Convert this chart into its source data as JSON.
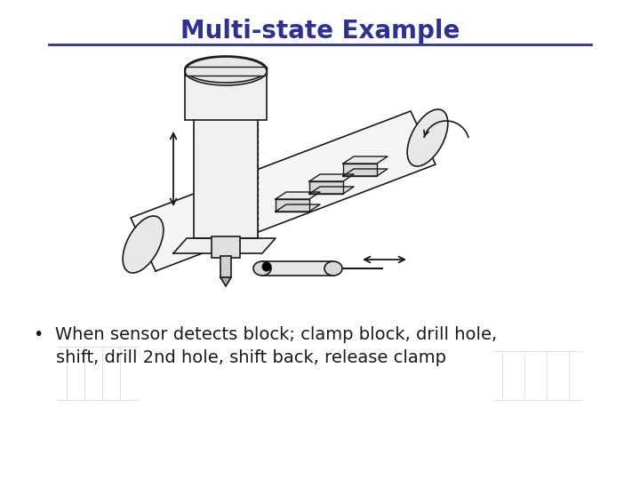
{
  "title": "Multi-state Example",
  "title_color": "#2E3192",
  "title_fontsize": 20,
  "underline_color": "#2E3192",
  "bullet_line1": "•  When sensor detects block; clamp block, drill hole,",
  "bullet_line2": "    shift, drill 2nd hole, shift back, release clamp",
  "bullet_fontsize": 14,
  "bullet_color": "#1a1a1a",
  "bg_color": "#ffffff",
  "lc": "#1a1a1a",
  "fig_width": 7.2,
  "fig_height": 5.4,
  "dpi": 100
}
